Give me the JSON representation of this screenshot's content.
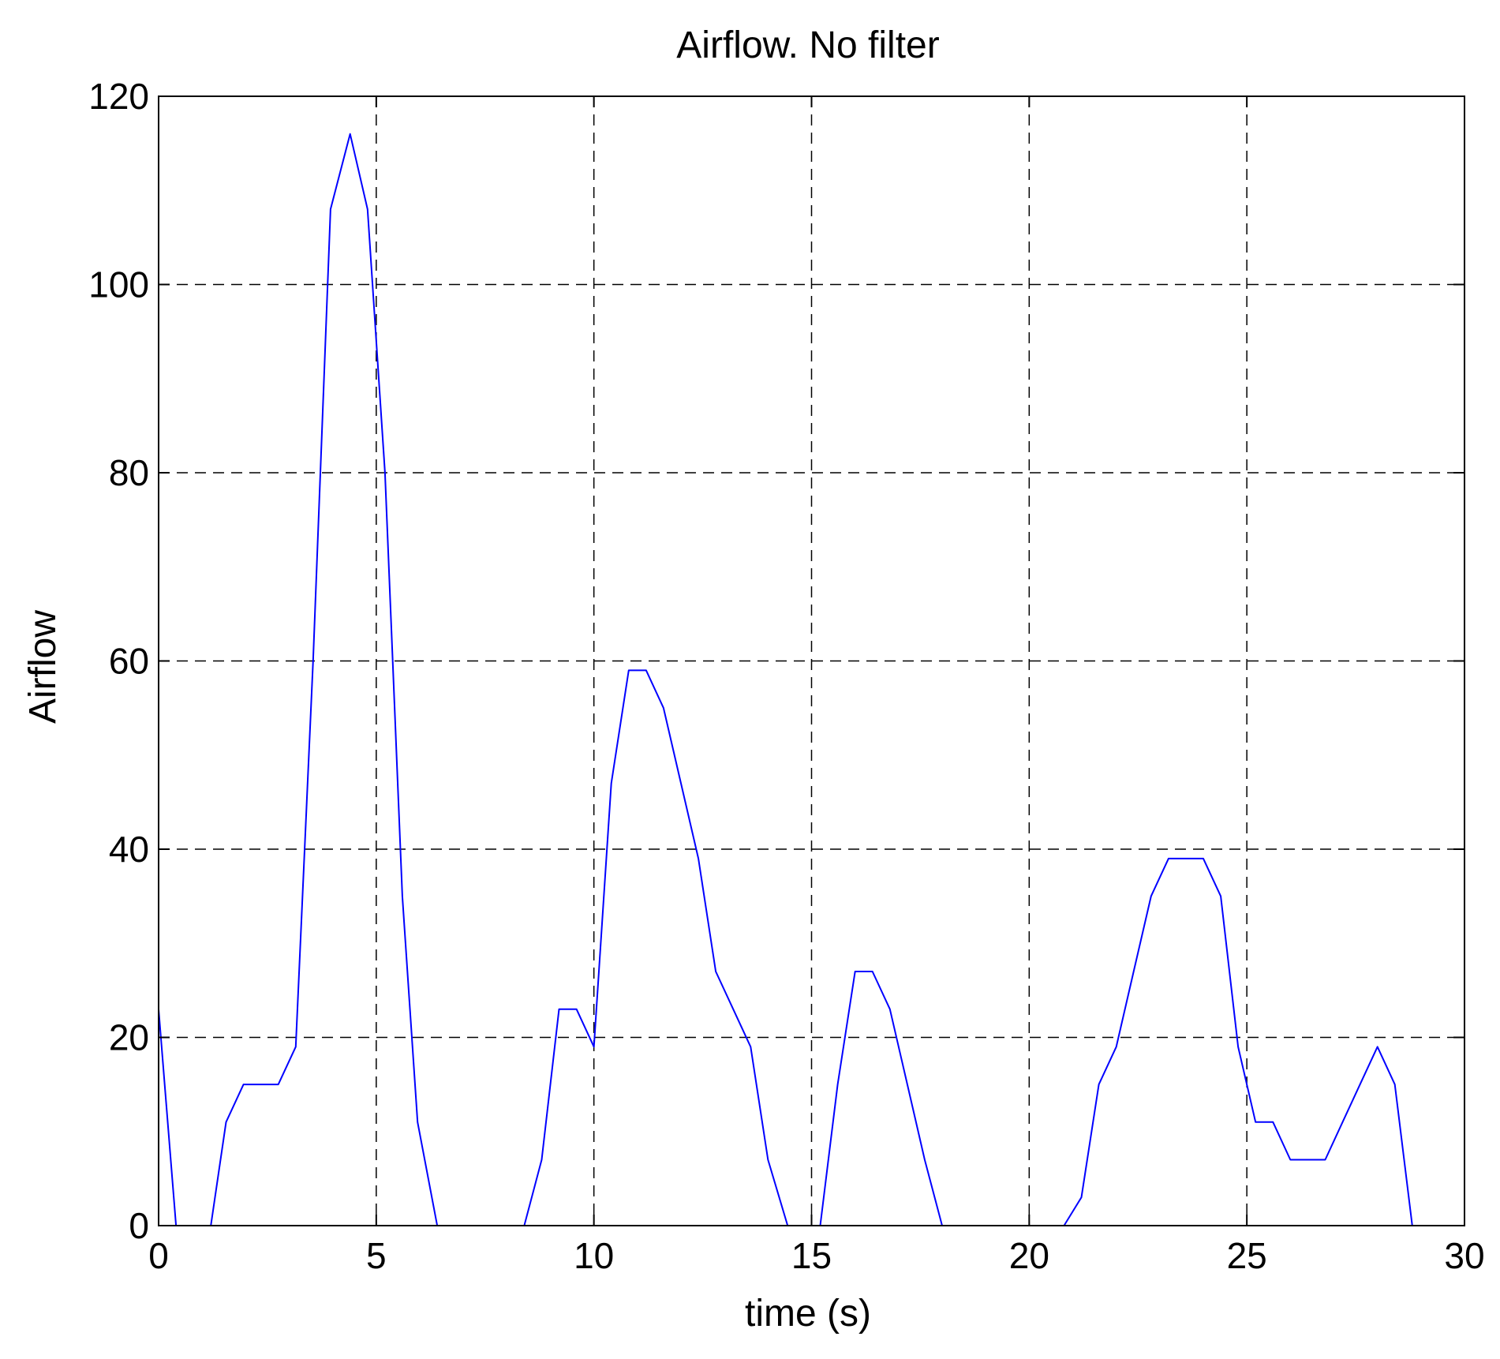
{
  "chart_data": {
    "type": "line",
    "title": "Airflow. No filter",
    "xlabel": "time (s)",
    "ylabel": "Airflow",
    "xlim": [
      0,
      30
    ],
    "ylim": [
      0,
      120
    ],
    "xticks": [
      0,
      5,
      10,
      15,
      20,
      25,
      30
    ],
    "yticks": [
      0,
      20,
      40,
      60,
      80,
      100,
      120
    ],
    "grid": true,
    "grid_style": "dashed",
    "colors": {
      "line": "#0000ff",
      "axes": "#000000",
      "grid": "#000000",
      "background": "#ffffff"
    },
    "series": [
      {
        "x": [
          0,
          0.4,
          1.2,
          1.55,
          1.95,
          2.75,
          3.15,
          3.55,
          3.95,
          4.4,
          4.8,
          5.2,
          5.6,
          5.95,
          6.4,
          8.4,
          8.8,
          9.2,
          9.6,
          10.0,
          10.4,
          10.8,
          11.2,
          11.6,
          12.0,
          12.4,
          12.8,
          13.2,
          13.6,
          14.0,
          14.45,
          15.2,
          15.6,
          16.0,
          16.4,
          16.8,
          17.2,
          17.6,
          18.0,
          20.8,
          21.2,
          21.6,
          22.0,
          22.4,
          22.8,
          23.2,
          23.6,
          24.0,
          24.4,
          24.8,
          25.2,
          25.6,
          26.0,
          26.4,
          26.8,
          27.2,
          27.6,
          28.0,
          28.4,
          28.8,
          29.2,
          30.0
        ],
        "y": [
          23,
          0,
          0,
          11,
          15,
          15,
          19,
          60,
          108,
          116,
          108,
          80,
          35,
          11,
          0,
          0,
          7,
          23,
          23,
          19,
          47,
          59,
          59,
          55,
          47,
          39,
          27,
          23,
          19,
          7,
          0,
          0,
          15,
          27,
          27,
          23,
          15,
          7,
          0,
          0,
          3,
          15,
          19,
          27,
          35,
          39,
          39,
          39,
          35,
          19,
          11,
          11,
          7,
          7,
          7,
          11,
          15,
          19,
          15,
          0,
          0,
          0
        ]
      }
    ]
  }
}
